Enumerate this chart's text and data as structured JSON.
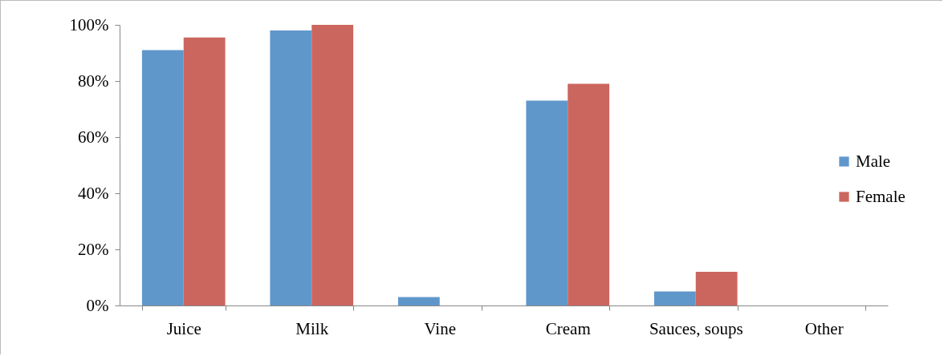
{
  "chart_data": {
    "type": "bar",
    "categories": [
      "Juice",
      "Milk",
      "Vine",
      "Cream",
      "Sauces, soups",
      "Other"
    ],
    "series": [
      {
        "name": "Male",
        "color": "#6097cb",
        "values": [
          91,
          98,
          3,
          73,
          5,
          0
        ]
      },
      {
        "name": "Female",
        "color": "#cb665e",
        "values": [
          95.5,
          100,
          0,
          79,
          12,
          0
        ]
      }
    ],
    "ylim": [
      0,
      100
    ],
    "yticks": [
      {
        "value": 0,
        "label": "0%"
      },
      {
        "value": 20,
        "label": "20%"
      },
      {
        "value": 40,
        "label": "40%"
      },
      {
        "value": 60,
        "label": "60%"
      },
      {
        "value": 80,
        "label": "80%"
      },
      {
        "value": 100,
        "label": "100%"
      }
    ],
    "grid": false,
    "legend": "right"
  }
}
